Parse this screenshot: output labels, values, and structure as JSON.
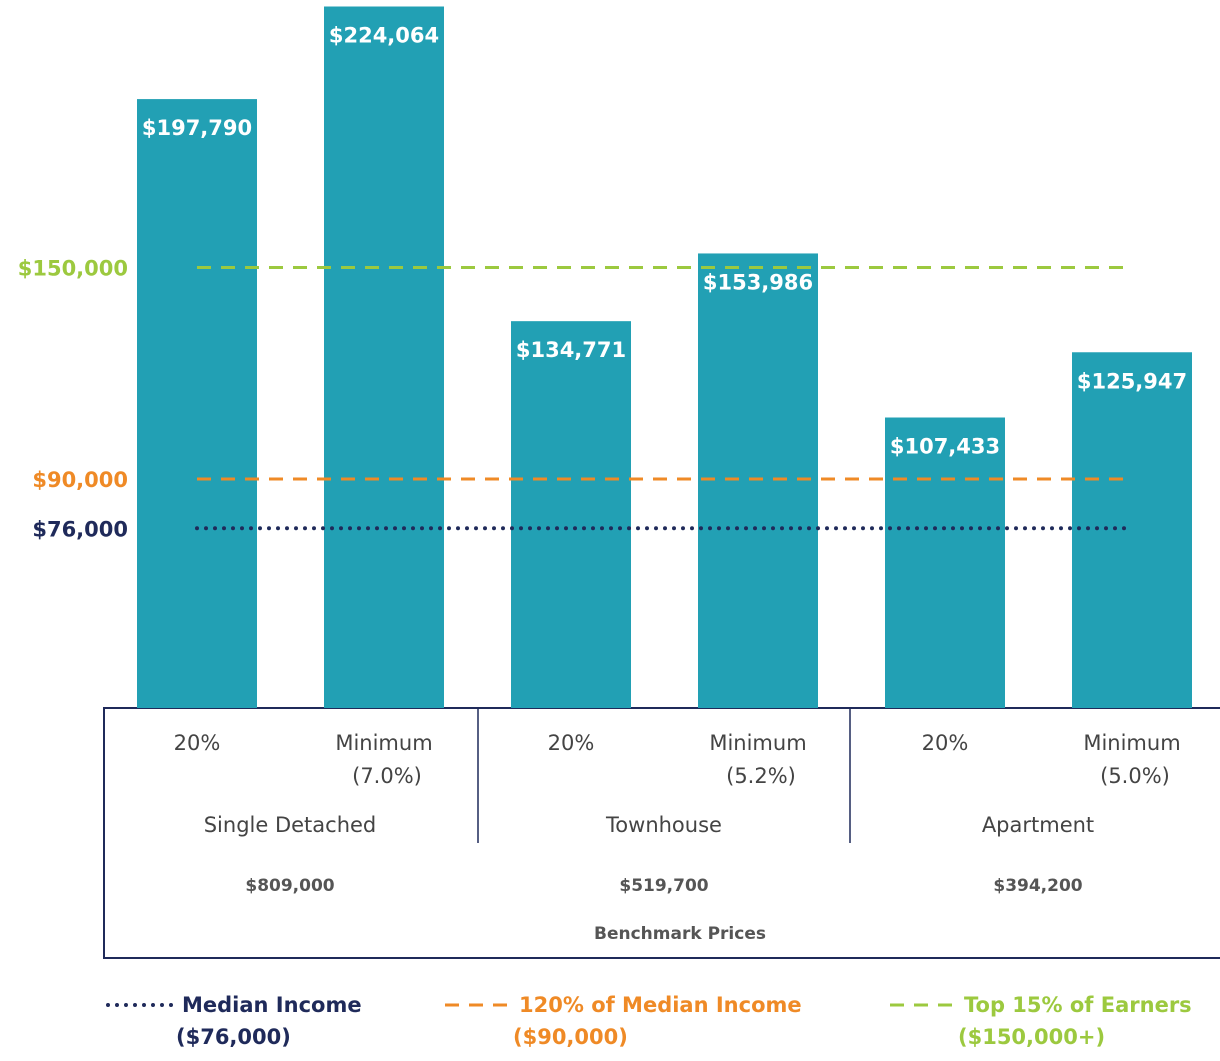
{
  "chart_data": {
    "type": "bar",
    "color": "#22a0b4",
    "groups": [
      {
        "name": "Single Detached",
        "price": "$809,000",
        "categories": [
          [
            "20%"
          ],
          [
            "Minimum",
            "(7.0%)"
          ]
        ],
        "values": [
          197790,
          224064
        ],
        "value_labels": [
          "$197,790",
          "$224,064"
        ]
      },
      {
        "name": "Townhouse",
        "price": "$519,700",
        "categories": [
          [
            "20%"
          ],
          [
            "Minimum",
            "(5.2%)"
          ]
        ],
        "values": [
          134771,
          153986
        ],
        "value_labels": [
          "$134,771",
          "$153,986"
        ]
      },
      {
        "name": "Apartment",
        "price": "$394,200",
        "categories": [
          [
            "20%"
          ],
          [
            "Minimum",
            "(5.0%)"
          ]
        ],
        "values": [
          107433,
          125947
        ],
        "value_labels": [
          "$107,433",
          "$125,947"
        ]
      }
    ],
    "group_axis_label": "Benchmark Prices",
    "ylim": [
      25000,
      225000
    ],
    "reference_lines": [
      {
        "name": "Median Income",
        "note": "($76,000)",
        "value": 76000,
        "label": "$76,000",
        "color": "#1f2a5a",
        "style": "dotted"
      },
      {
        "name": "120% of Median Income",
        "note": "($90,000)",
        "value": 90000,
        "label": "$90,000",
        "color": "#ef8a26",
        "style": "dashed"
      },
      {
        "name": "Top 15% of Earners",
        "note": "($150,000+)",
        "value": 150000,
        "label": "$150,000",
        "color": "#9cc93f",
        "style": "dashed"
      }
    ]
  }
}
